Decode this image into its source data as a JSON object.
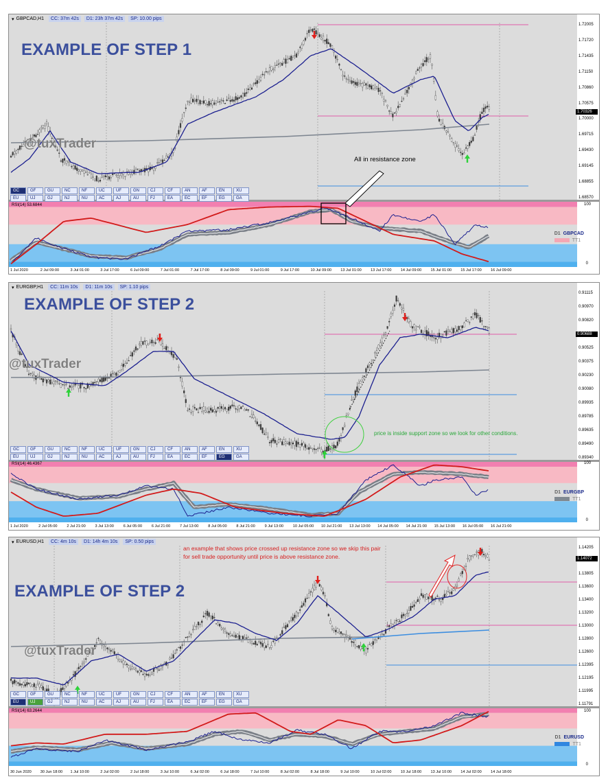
{
  "panels": [
    {
      "title": {
        "symbol": "GBPCAD,H1",
        "cc": "CC: 37m 42s",
        "d1": "D1: 23h 37m 42s",
        "sp": "SP: 10.00 pips"
      },
      "step_label": "EXAMPLE OF STEP 1",
      "watermark": "@tuxTrader",
      "annotation": "All in resistance zone",
      "price_labels": [
        "1.72005",
        "1.71720",
        "1.71435",
        "1.71150",
        "1.70860",
        "1.70575",
        "1.70000",
        "1.69715",
        "1.69430",
        "1.69145",
        "1.68855",
        "1.68570"
      ],
      "current_price": "1.70326",
      "rsi_label": "RSI(14) 53.6844",
      "rsi_levels": [
        "100",
        "0"
      ],
      "legend": {
        "d1": "D1",
        "symbol": "GBPCAD",
        "indicator": "TT1",
        "swatch_color": "#f4a7b4"
      },
      "time_labels": [
        "1 Jul 2020",
        "2 Jul 09:00",
        "3 Jul 01:00",
        "3 Jul 17:00",
        "6 Jul 09:00",
        "7 Jul 01:00",
        "7 Jul 17:00",
        "8 Jul 09:00",
        "9 Jul 01:00",
        "9 Jul 17:00",
        "10 Jul 09:00",
        "13 Jul 01:00",
        "13 Jul 17:00",
        "14 Jul 09:00",
        "15 Jul 01:00",
        "15 Jul 17:00",
        "16 Jul 09:00"
      ],
      "symbols_row1": [
        "GC",
        "GF",
        "GU",
        "NC",
        "NF",
        "UC",
        "UF",
        "GN",
        "CJ",
        "CF",
        "AN",
        "AF",
        "EN",
        "XU"
      ],
      "symbols_row2": [
        "EU",
        "UJ",
        "GJ",
        "NJ",
        "NU",
        "AC",
        "AJ",
        "AU",
        "FJ",
        "EA",
        "EC",
        "EF",
        "EG",
        "GA"
      ],
      "active_symbol": "GC",
      "active_style": "dark"
    },
    {
      "title": {
        "symbol": "EURGBP,H1",
        "cc": "CC: 11m 10s",
        "d1": "D1: 11m 10s",
        "sp": "SP: 1.10 pips"
      },
      "step_label": "EXAMPLE OF STEP 2",
      "watermark": "@tuxTrader",
      "annotation": "price is inside support zone so we look for other conditions.",
      "price_labels": [
        "0.91115",
        "0.90970",
        "0.90820",
        "0.90670",
        "0.90525",
        "0.90375",
        "0.90230",
        "0.90080",
        "0.89935",
        "0.89785",
        "0.89635",
        "0.89490",
        "0.89340"
      ],
      "current_price": "0.90688",
      "rsi_label": "RSI(14) 46.4367",
      "rsi_levels": [
        "100",
        "0"
      ],
      "legend": {
        "d1": "D1",
        "symbol": "EURGBP",
        "indicator": "TT1",
        "swatch_color": "#808890"
      },
      "time_labels": [
        "1 Jul 2020",
        "2 Jul 05:00",
        "2 Jul 21:00",
        "3 Jul 13:00",
        "6 Jul 05:00",
        "6 Jul 21:00",
        "7 Jul 13:00",
        "8 Jul 05:00",
        "8 Jul 21:00",
        "9 Jul 13:00",
        "10 Jul 05:00",
        "10 Jul 21:00",
        "13 Jul 13:00",
        "14 Jul 05:00",
        "14 Jul 21:00",
        "15 Jul 13:00",
        "16 Jul 05:00",
        "16 Jul 21:00"
      ],
      "symbols_row1": [
        "GC",
        "GF",
        "GU",
        "NC",
        "NF",
        "UC",
        "UF",
        "GN",
        "CJ",
        "CF",
        "AN",
        "AF",
        "EN",
        "XU"
      ],
      "symbols_row2": [
        "EU",
        "UJ",
        "GJ",
        "NJ",
        "NU",
        "AC",
        "AJ",
        "AU",
        "FJ",
        "EA",
        "EC",
        "EF",
        "EG",
        "GA"
      ],
      "active_symbol": "EG",
      "active_style": "dark"
    },
    {
      "title": {
        "symbol": "EURUSD,H1",
        "cc": "CC: 4m 10s",
        "d1": "D1: 14h 4m 10s",
        "sp": "SP: 0.50 pips"
      },
      "step_label": "EXAMPLE OF STEP 2",
      "watermark": "@tuxTrader",
      "annotation": "an example that shows price crossed up resistance zone so we skip this pair for sell trade opportunity until price is above resistance zone.",
      "price_labels": [
        "1.14205",
        "1.14005",
        "1.13805",
        "1.13600",
        "1.13400",
        "1.13200",
        "1.13000",
        "1.12800",
        "1.12600",
        "1.12395",
        "1.12195",
        "1.11995",
        "1.11791"
      ],
      "current_price": "1.14072",
      "rsi_label": "RSI(14) 63.2644",
      "rsi_levels": [
        "100",
        "0"
      ],
      "legend": {
        "d1": "D1",
        "symbol": "EURUSD",
        "indicator": "TT1",
        "swatch_color": "#2f86e0"
      },
      "time_labels": [
        "30 Jun 2020",
        "30 Jun 18:00",
        "1 Jul 10:00",
        "2 Jul 02:00",
        "2 Jul 18:00",
        "3 Jul 10:00",
        "6 Jul 02:00",
        "6 Jul 18:00",
        "7 Jul 10:00",
        "8 Jul 02:00",
        "8 Jul 18:00",
        "9 Jul 10:00",
        "10 Jul 02:00",
        "10 Jul 18:00",
        "13 Jul 10:00",
        "14 Jul 02:00",
        "14 Jul 18:00"
      ],
      "symbols_row1": [
        "GC",
        "GF",
        "GU",
        "NC",
        "NF",
        "UC",
        "UF",
        "GN",
        "CJ",
        "CF",
        "AN",
        "AF",
        "EN",
        "XU"
      ],
      "symbols_row2": [
        "EU",
        "UJ",
        "GJ",
        "NJ",
        "NU",
        "AC",
        "AJ",
        "AU",
        "FJ",
        "EA",
        "EC",
        "EF",
        "EG",
        "GA"
      ],
      "active_symbol": "EU",
      "active_symbol_2": "UJ",
      "active_style": "dark"
    }
  ]
}
